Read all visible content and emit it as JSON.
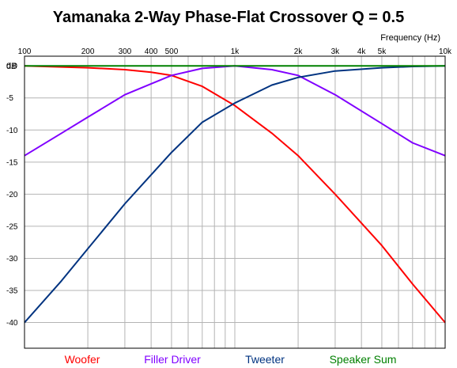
{
  "chart_data": {
    "type": "line",
    "title": "Yamanaka 2-Way Phase-Flat Crossover Q = 0.5",
    "xlabel": "Frequency  (Hz)",
    "ylabel": "dB",
    "xscale": "log",
    "xlim": [
      100,
      10000
    ],
    "ylim": [
      -44,
      1.5
    ],
    "x_tick_values": [
      100,
      200,
      300,
      400,
      500,
      1000,
      2000,
      3000,
      4000,
      5000,
      10000
    ],
    "x_tick_labels": [
      "100",
      "200",
      "300",
      "400",
      "500",
      "1k",
      "2k",
      "3k",
      "4k",
      "5k",
      "10k"
    ],
    "y_tick_values": [
      0,
      -5,
      -10,
      -15,
      -20,
      -25,
      -30,
      -35,
      -40
    ],
    "y_tick_labels": [
      "0.0",
      "-5",
      "-10",
      "-15",
      "-20",
      "-25",
      "-30",
      "-35",
      "-40"
    ],
    "grid": true,
    "legend_position": "bottom",
    "series": [
      {
        "name": "Woofer",
        "color": "#ff0000",
        "x": [
          100,
          200,
          300,
          400,
          500,
          700,
          1000,
          1500,
          2000,
          3000,
          5000,
          7000,
          10000
        ],
        "y": [
          0.0,
          -0.3,
          -0.6,
          -1.0,
          -1.5,
          -3.2,
          -6.2,
          -10.5,
          -14.0,
          -20.0,
          -28.0,
          -34.0,
          -40.0
        ]
      },
      {
        "name": "Filler Driver",
        "color": "#8000ff",
        "x": [
          100,
          150,
          200,
          300,
          400,
          500,
          700,
          1000,
          1500,
          2000,
          3000,
          5000,
          7000,
          10000
        ],
        "y": [
          -14.0,
          -10.5,
          -8.0,
          -4.5,
          -2.8,
          -1.5,
          -0.4,
          0.0,
          -0.6,
          -1.5,
          -4.5,
          -9.0,
          -12.0,
          -14.0
        ]
      },
      {
        "name": "Tweeter",
        "color": "#003380",
        "x": [
          100,
          150,
          200,
          300,
          500,
          700,
          1000,
          1500,
          2000,
          3000,
          5000,
          7000,
          10000
        ],
        "y": [
          -40.0,
          -33.5,
          -28.5,
          -21.5,
          -13.5,
          -8.8,
          -5.8,
          -3.0,
          -1.8,
          -0.8,
          -0.3,
          -0.1,
          0.0
        ]
      },
      {
        "name": "Speaker Sum",
        "color": "#008000",
        "x": [
          100,
          10000
        ],
        "y": [
          0.0,
          0.0
        ]
      }
    ]
  }
}
